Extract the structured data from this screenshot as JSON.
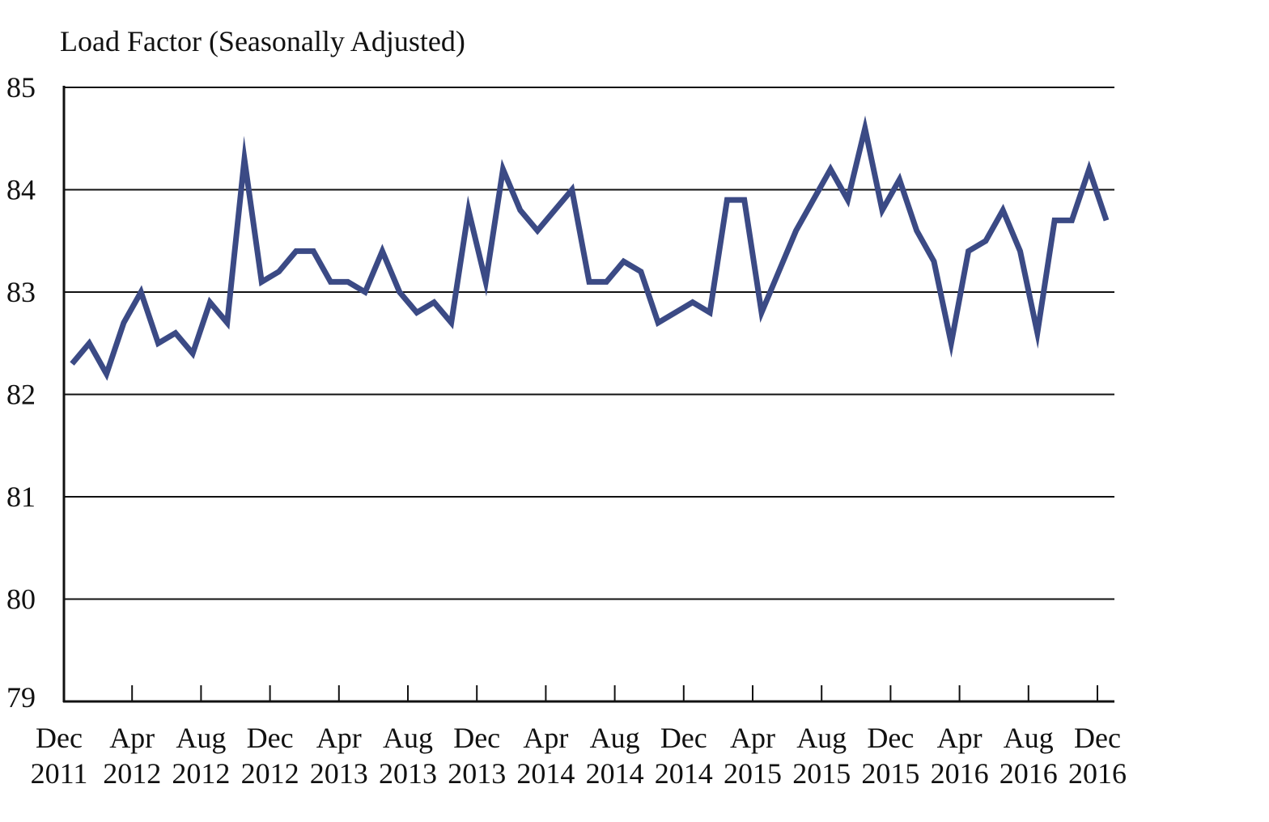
{
  "chart_data": {
    "type": "line",
    "title": "Load Factor (Seasonally Adjusted)",
    "xlabel": "",
    "ylabel": "",
    "ylim": [
      79,
      85
    ],
    "y_ticks": [
      79,
      80,
      81,
      82,
      83,
      84,
      85
    ],
    "grid": true,
    "x_tick_labels": [
      {
        "month": "Dec",
        "year": "2011"
      },
      {
        "month": "Apr",
        "year": "2012"
      },
      {
        "month": "Aug",
        "year": "2012"
      },
      {
        "month": "Dec",
        "year": "2012"
      },
      {
        "month": "Apr",
        "year": "2013"
      },
      {
        "month": "Aug",
        "year": "2013"
      },
      {
        "month": "Dec",
        "year": "2013"
      },
      {
        "month": "Apr",
        "year": "2014"
      },
      {
        "month": "Aug",
        "year": "2014"
      },
      {
        "month": "Dec",
        "year": "2014"
      },
      {
        "month": "Apr",
        "year": "2015"
      },
      {
        "month": "Aug",
        "year": "2015"
      },
      {
        "month": "Dec",
        "year": "2015"
      },
      {
        "month": "Apr",
        "year": "2016"
      },
      {
        "month": "Aug",
        "year": "2016"
      },
      {
        "month": "Dec",
        "year": "2016"
      }
    ],
    "series": [
      {
        "color": "#3b4a85",
        "values": [
          82.3,
          82.5,
          82.2,
          82.7,
          83.0,
          82.5,
          82.6,
          82.4,
          82.9,
          82.7,
          84.3,
          83.1,
          83.2,
          83.4,
          83.4,
          83.1,
          83.1,
          83.0,
          83.4,
          83.0,
          82.8,
          82.9,
          82.7,
          83.8,
          83.1,
          84.2,
          83.8,
          83.6,
          83.8,
          84.0,
          83.1,
          83.1,
          83.3,
          83.2,
          82.7,
          82.8,
          82.9,
          82.8,
          83.9,
          83.9,
          82.8,
          83.2,
          83.6,
          83.9,
          84.2,
          83.9,
          84.6,
          83.8,
          84.1,
          83.6,
          83.3,
          82.5,
          83.4,
          83.5,
          83.8,
          83.4,
          82.6,
          83.7,
          83.7,
          84.2,
          83.7
        ]
      }
    ]
  }
}
